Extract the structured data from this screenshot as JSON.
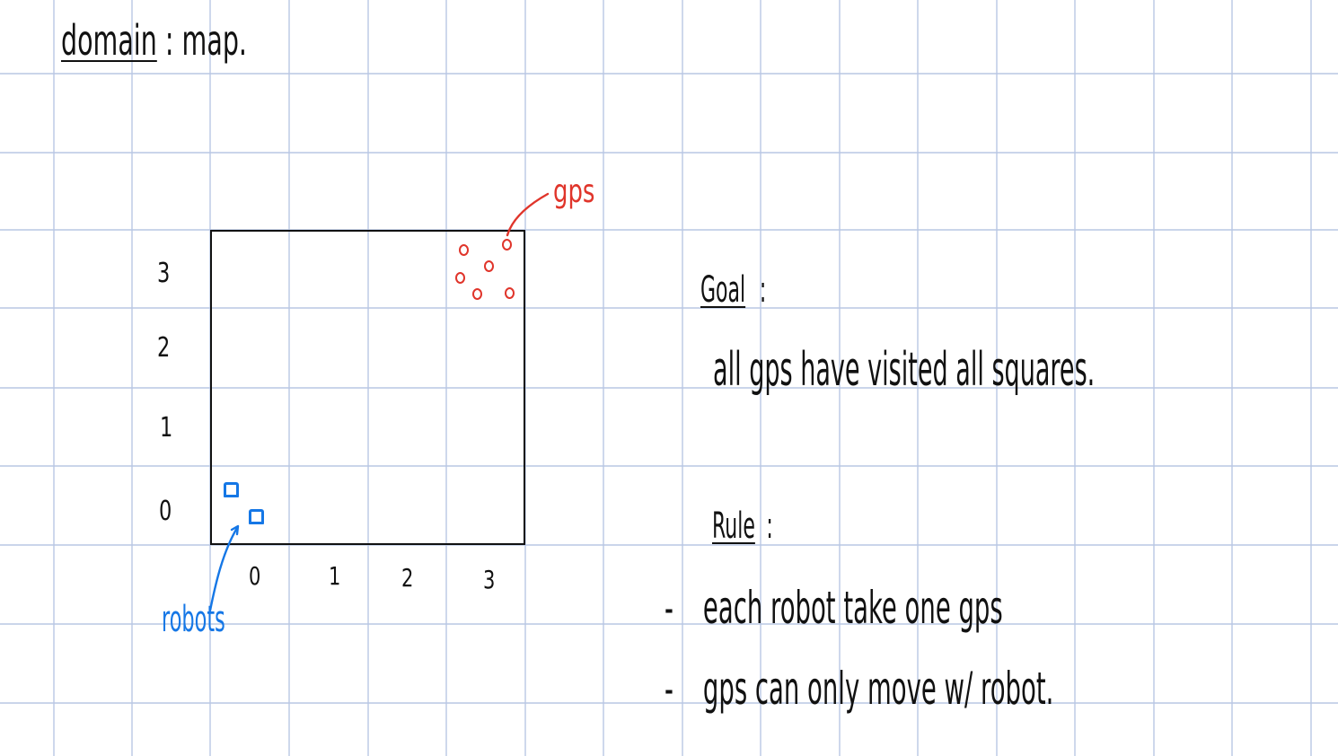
{
  "colors": {
    "ink": "#111111",
    "grid_line": "#b9c7e4",
    "gps": "#e0352b",
    "robots": "#1577e6"
  },
  "title": {
    "word": "domain",
    "separator": ":",
    "value": "map."
  },
  "board": {
    "y_ticks": [
      "0",
      "1",
      "2",
      "3"
    ],
    "x_ticks": [
      "0",
      "1",
      "2",
      "3"
    ],
    "gps_label": "gps",
    "robots_label": "robots",
    "gps_count": 6,
    "robot_count": 2,
    "gps_cell": [
      3,
      3
    ],
    "robots_cell": [
      0,
      0
    ]
  },
  "goal": {
    "heading": "Goal",
    "colon": ":",
    "text": "all gps have visited all squares."
  },
  "rule": {
    "heading": "Rule",
    "colon": ":",
    "items": [
      "each robot take one gps",
      "gps can only move w/ robot."
    ],
    "bullet": "-"
  }
}
